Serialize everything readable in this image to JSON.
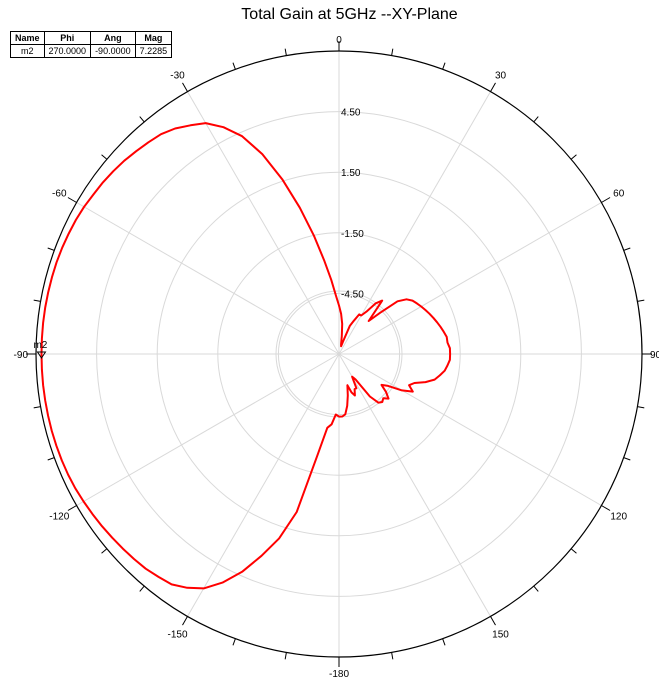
{
  "chart_data": {
    "type": "polar-line",
    "title": "Total Gain at 5GHz --XY-Plane",
    "radial_range": [
      -7.5,
      7.5
    ],
    "radial_ticks": [
      "4.50",
      "1.50",
      "-1.50",
      "-4.50"
    ],
    "radial_tick_values": [
      4.5,
      1.5,
      -1.5,
      -4.5
    ],
    "angular_ticks": [
      "0",
      "30",
      "60",
      "90",
      "120",
      "150",
      "-180",
      "-150",
      "-120",
      "-90",
      "-60",
      "-30"
    ],
    "angular_tick_values": [
      0,
      30,
      60,
      90,
      120,
      150,
      180,
      -150,
      -120,
      -90,
      -60,
      -30
    ],
    "grid": true,
    "series": [
      {
        "color": "#ff0000",
        "angle": [
          0,
          3,
          6,
          9,
          12,
          15,
          18,
          21,
          24,
          27,
          30,
          33,
          36,
          39,
          42,
          45,
          48,
          51,
          54,
          57,
          60,
          63,
          66,
          69,
          72,
          75,
          78,
          81,
          84,
          87,
          90,
          93,
          96,
          99,
          102,
          105,
          108,
          111,
          114,
          117,
          120,
          123,
          126,
          129,
          132,
          135,
          138,
          141,
          144,
          147,
          150,
          153,
          156,
          159,
          162,
          165,
          168,
          171,
          174,
          177,
          180,
          -177,
          -174,
          -171,
          -168,
          -165,
          -162,
          -159,
          -156,
          -153,
          -150,
          -147,
          -144,
          -141,
          -138,
          -135,
          -132,
          -129,
          -126,
          -123,
          -120,
          -117,
          -114,
          -111,
          -108,
          -105,
          -102,
          -99,
          -96,
          -93,
          -90,
          -87,
          -84,
          -81,
          -78,
          -75,
          -72,
          -69,
          -66,
          -63,
          -60,
          -57,
          -54,
          -51,
          -48,
          -45,
          -42,
          -39,
          -36,
          -33,
          -30,
          -27,
          -24,
          -21,
          -18,
          -15,
          -12,
          -9,
          -6,
          -3
        ],
        "gain": [
          -5.1,
          -5.5,
          -6.0,
          -6.6,
          -7.0,
          -7.1,
          -6.8,
          -6.0,
          -5.7,
          -5.3,
          -5.3,
          -5.0,
          -4.4,
          -4.1,
          -5.3,
          -4.6,
          -3.6,
          -3.2,
          -3.0,
          -2.9,
          -2.8,
          -2.7,
          -2.6,
          -2.5,
          -2.4,
          -2.3,
          -2.2,
          -2.1,
          -2.1,
          -2.0,
          -2.0,
          -2.0,
          -2.1,
          -2.2,
          -2.4,
          -2.6,
          -3.0,
          -3.5,
          -3.7,
          -3.4,
          -3.9,
          -4.6,
          -4.9,
          -4.5,
          -4.2,
          -4.4,
          -4.3,
          -4.4,
          -4.9,
          -6.0,
          -6.2,
          -5.6,
          -5.6,
          -5.3,
          -5.5,
          -5.9,
          -5.4,
          -4.9,
          -4.5,
          -4.4,
          -4.4,
          -4.5,
          -4.0,
          -3.8,
          -2.4,
          0.6,
          2.1,
          3.2,
          4.3,
          5.2,
          5.9,
          6.3,
          6.6,
          6.7,
          6.8,
          6.85,
          6.9,
          6.95,
          7.0,
          7.05,
          7.1,
          7.15,
          7.18,
          7.2,
          7.21,
          7.22,
          7.222,
          7.225,
          7.227,
          7.228,
          7.2285,
          7.228,
          7.227,
          7.225,
          7.22,
          7.21,
          7.2,
          7.18,
          7.15,
          7.12,
          7.07,
          7.0,
          6.95,
          6.88,
          6.8,
          6.7,
          6.6,
          6.5,
          6.3,
          6.0,
          5.7,
          5.1,
          4.3,
          3.1,
          1.6,
          0.0,
          -1.5,
          -2.8,
          -3.8,
          -4.6
        ]
      }
    ],
    "marker": {
      "name": "m2",
      "angle_value": -90,
      "mag_value": 7.2285
    }
  },
  "marker_table": {
    "headers": [
      "Name",
      "Phi",
      "Ang",
      "Mag"
    ],
    "rows": [
      [
        "m2",
        "270.0000",
        "-90.0000",
        "7.2285"
      ]
    ]
  }
}
